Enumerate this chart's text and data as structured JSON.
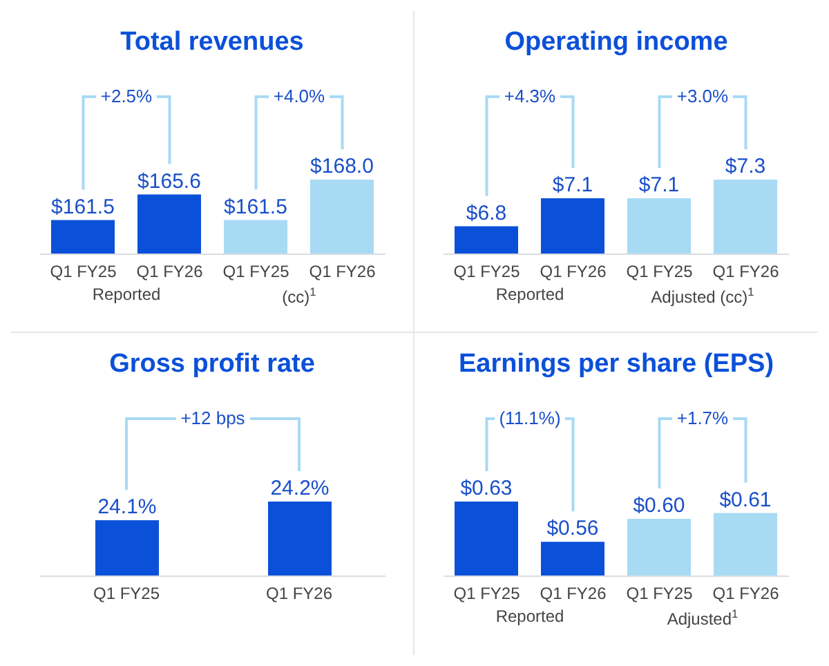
{
  "chart_data": [
    {
      "type": "bar",
      "title": "Total revenues",
      "categories": [
        "Q1 FY25",
        "Q1 FY26",
        "Q1 FY25",
        "Q1 FY26"
      ],
      "values": [
        161.5,
        165.6,
        161.5,
        168.0
      ],
      "value_labels": [
        "$161.5",
        "$165.6",
        "$161.5",
        "$168.0"
      ],
      "colors": [
        "#0b50d9",
        "#0b50d9",
        "#a8daf4",
        "#a8daf4"
      ],
      "ylim": [
        156,
        168
      ],
      "tick_labels": "x",
      "annotations": [
        "+2.5%",
        "+4.0%",
        "Reported",
        "(cc)$^{1}$"
      ]
    },
    {
      "type": "bar",
      "title": "Operating income",
      "categories": [
        "Q1 FY25",
        "Q1 FY26",
        "Q1 FY25",
        "Q1 FY26"
      ],
      "values": [
        6.8,
        7.1,
        7.1,
        7.3
      ],
      "value_labels": [
        "$6.8",
        "$7.1",
        "$7.1",
        "$7.3"
      ],
      "colors": [
        "#0b50d9",
        "#0b50d9",
        "#a8daf4",
        "#a8daf4"
      ],
      "ylim": [
        6.5,
        7.3
      ],
      "tick_labels": "x",
      "annotations": [
        "+4.3%",
        "+3.0%",
        "Reported",
        "Adjusted (cc)$^{1}$"
      ]
    },
    {
      "type": "bar",
      "title": "Gross profit rate",
      "categories": [
        "Q1 FY25",
        "Q1 FY26"
      ],
      "values": [
        24.1,
        24.2
      ],
      "value_labels": [
        "24.1%",
        "24.2%"
      ],
      "colors": [
        "#0b50d9",
        "#0b50d9"
      ],
      "ylim": [
        23.8,
        24.2
      ],
      "tick_labels": "x",
      "annotations": [
        "+12 bps"
      ]
    },
    {
      "type": "bar",
      "title": "Earnings per share (EPS)",
      "categories": [
        "Q1 FY25",
        "Q1 FY26",
        "Q1 FY25",
        "Q1 FY26"
      ],
      "values": [
        0.63,
        0.56,
        0.6,
        0.61
      ],
      "value_labels": [
        "$0.63",
        "$0.56",
        "$0.60",
        "$0.61"
      ],
      "colors": [
        "#0b50d9",
        "#0b50d9",
        "#a8daf4",
        "#a8daf4"
      ],
      "ylim": [
        0.5,
        0.63
      ],
      "tick_labels": "x",
      "annotations": [
        "(11.1%)",
        "+1.7%",
        "Reported",
        "Adjusted$^{1}$"
      ]
    }
  ]
}
